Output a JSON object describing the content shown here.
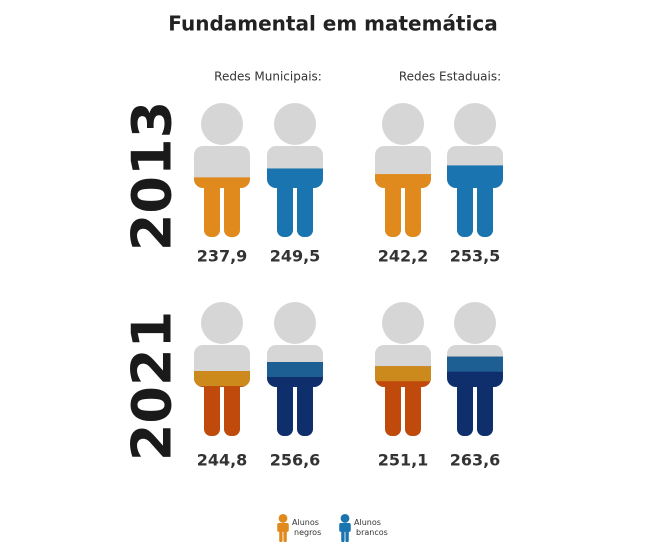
{
  "chart_data": {
    "type": "pictogram",
    "title": "Fundamental em matemática",
    "categories": [
      "Redes Municipais:",
      "Redes Estaduais:"
    ],
    "years": [
      "2013",
      "2021"
    ],
    "ylim": [
      160,
      335
    ],
    "series": [
      {
        "name": "Alunos negros",
        "colors": [
          "#e08a1e",
          "#bf4a0c"
        ],
        "values": [
          [
            237.9,
            242.2
          ],
          [
            244.8,
            251.1
          ]
        ],
        "value_labels": [
          [
            "237,9",
            "242,2"
          ],
          [
            "244,8",
            "251,1"
          ]
        ]
      },
      {
        "name": "Alunos brancos",
        "colors": [
          "#1a74b0",
          "#0e2f6c"
        ],
        "values": [
          [
            249.5,
            253.5
          ],
          [
            256.6,
            263.6
          ]
        ],
        "value_labels": [
          [
            "249,5",
            "253,5"
          ],
          [
            "256,6",
            "263,6"
          ]
        ]
      }
    ]
  }
}
